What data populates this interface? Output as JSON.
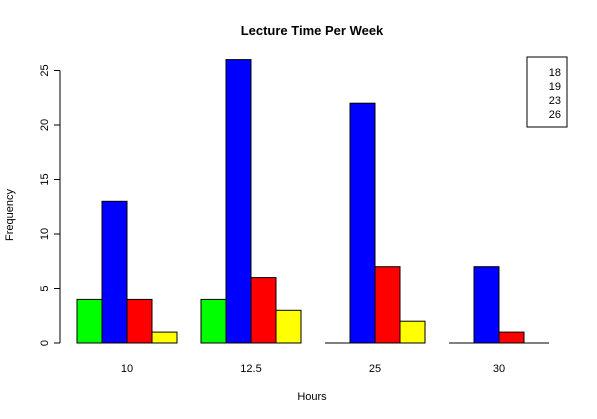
{
  "chart_data": {
    "type": "bar",
    "title": "Lecture Time Per Week",
    "xlabel": "Hours",
    "ylabel": "Frequency",
    "categories": [
      "10",
      "12.5",
      "25",
      "30"
    ],
    "ylim": [
      0,
      26
    ],
    "yticks": [
      0,
      5,
      10,
      15,
      20,
      25
    ],
    "grid": false,
    "legend_placement": "top-right",
    "series": [
      {
        "name": "18",
        "color": "#00ff00",
        "values": [
          4,
          4,
          0,
          0
        ]
      },
      {
        "name": "19",
        "color": "#0000ff",
        "values": [
          13,
          26,
          22,
          7
        ]
      },
      {
        "name": "23",
        "color": "#ff0000",
        "values": [
          4,
          6,
          7,
          1
        ]
      },
      {
        "name": "26",
        "color": "#ffff00",
        "values": [
          1,
          3,
          2,
          0
        ]
      }
    ]
  }
}
